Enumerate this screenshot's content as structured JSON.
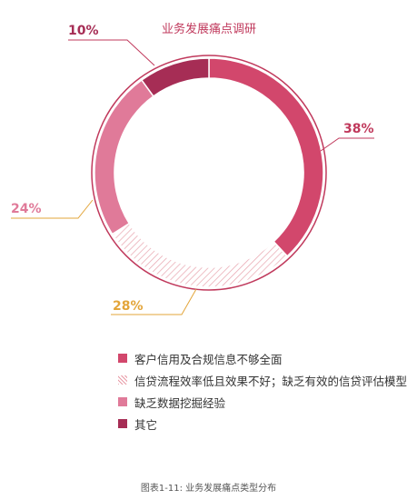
{
  "chart_data": {
    "type": "pie",
    "variant": "donut",
    "title": "业务发展痛点调研",
    "slices": [
      {
        "label": "客户信用及合规信息不够全面",
        "value": 38,
        "value_label": "38%",
        "color": "#d2476c",
        "fill": "solid"
      },
      {
        "label": "信贷流程效率低且效果不好；缺乏有效的信贷评估模型",
        "value": 28,
        "value_label": "28%",
        "color": "#e89aa6",
        "fill": "hatched"
      },
      {
        "label": "缺乏数据挖掘经验",
        "value": 24,
        "value_label": "24%",
        "color": "#e07a99",
        "fill": "solid"
      },
      {
        "label": "其它",
        "value": 10,
        "value_label": "10%",
        "color": "#a62d55",
        "fill": "solid"
      }
    ],
    "legend_position": "bottom"
  },
  "colors": {
    "title": "#c0395c",
    "ring_outline": "#c0395c",
    "label_pink": "#c0395c",
    "label_orange": "#e3a53a",
    "label_light_pink": "#e07a99",
    "label_dark": "#a62d55"
  },
  "caption": "图表1-11: 业务发展痛点类型分布"
}
